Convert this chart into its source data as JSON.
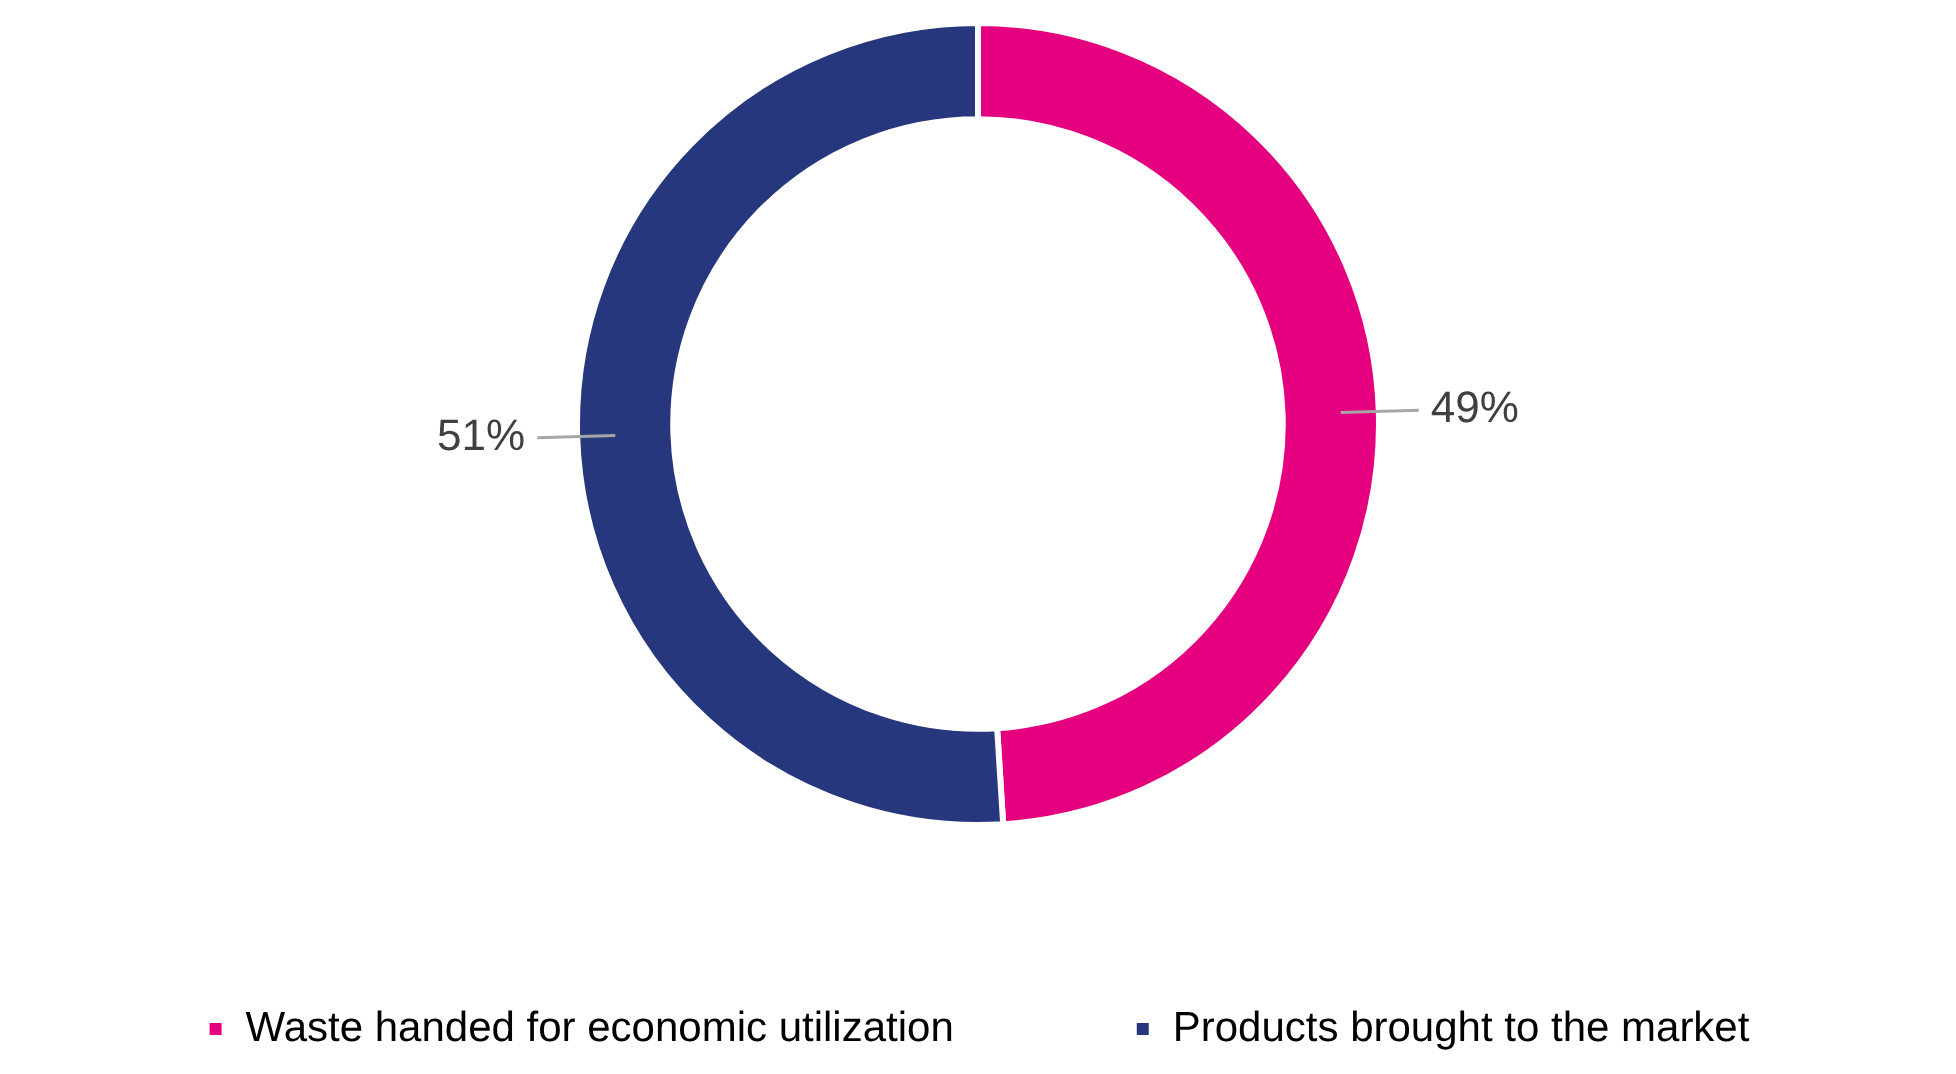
{
  "chart_data": {
    "type": "donut",
    "categories": [
      "Waste handed for economic utilization",
      "Products brought to the market"
    ],
    "values": [
      49,
      51
    ],
    "colors": [
      "#e4007f",
      "#27377e"
    ],
    "value_labels": [
      "49%",
      "51%"
    ],
    "legend": "bottom"
  }
}
